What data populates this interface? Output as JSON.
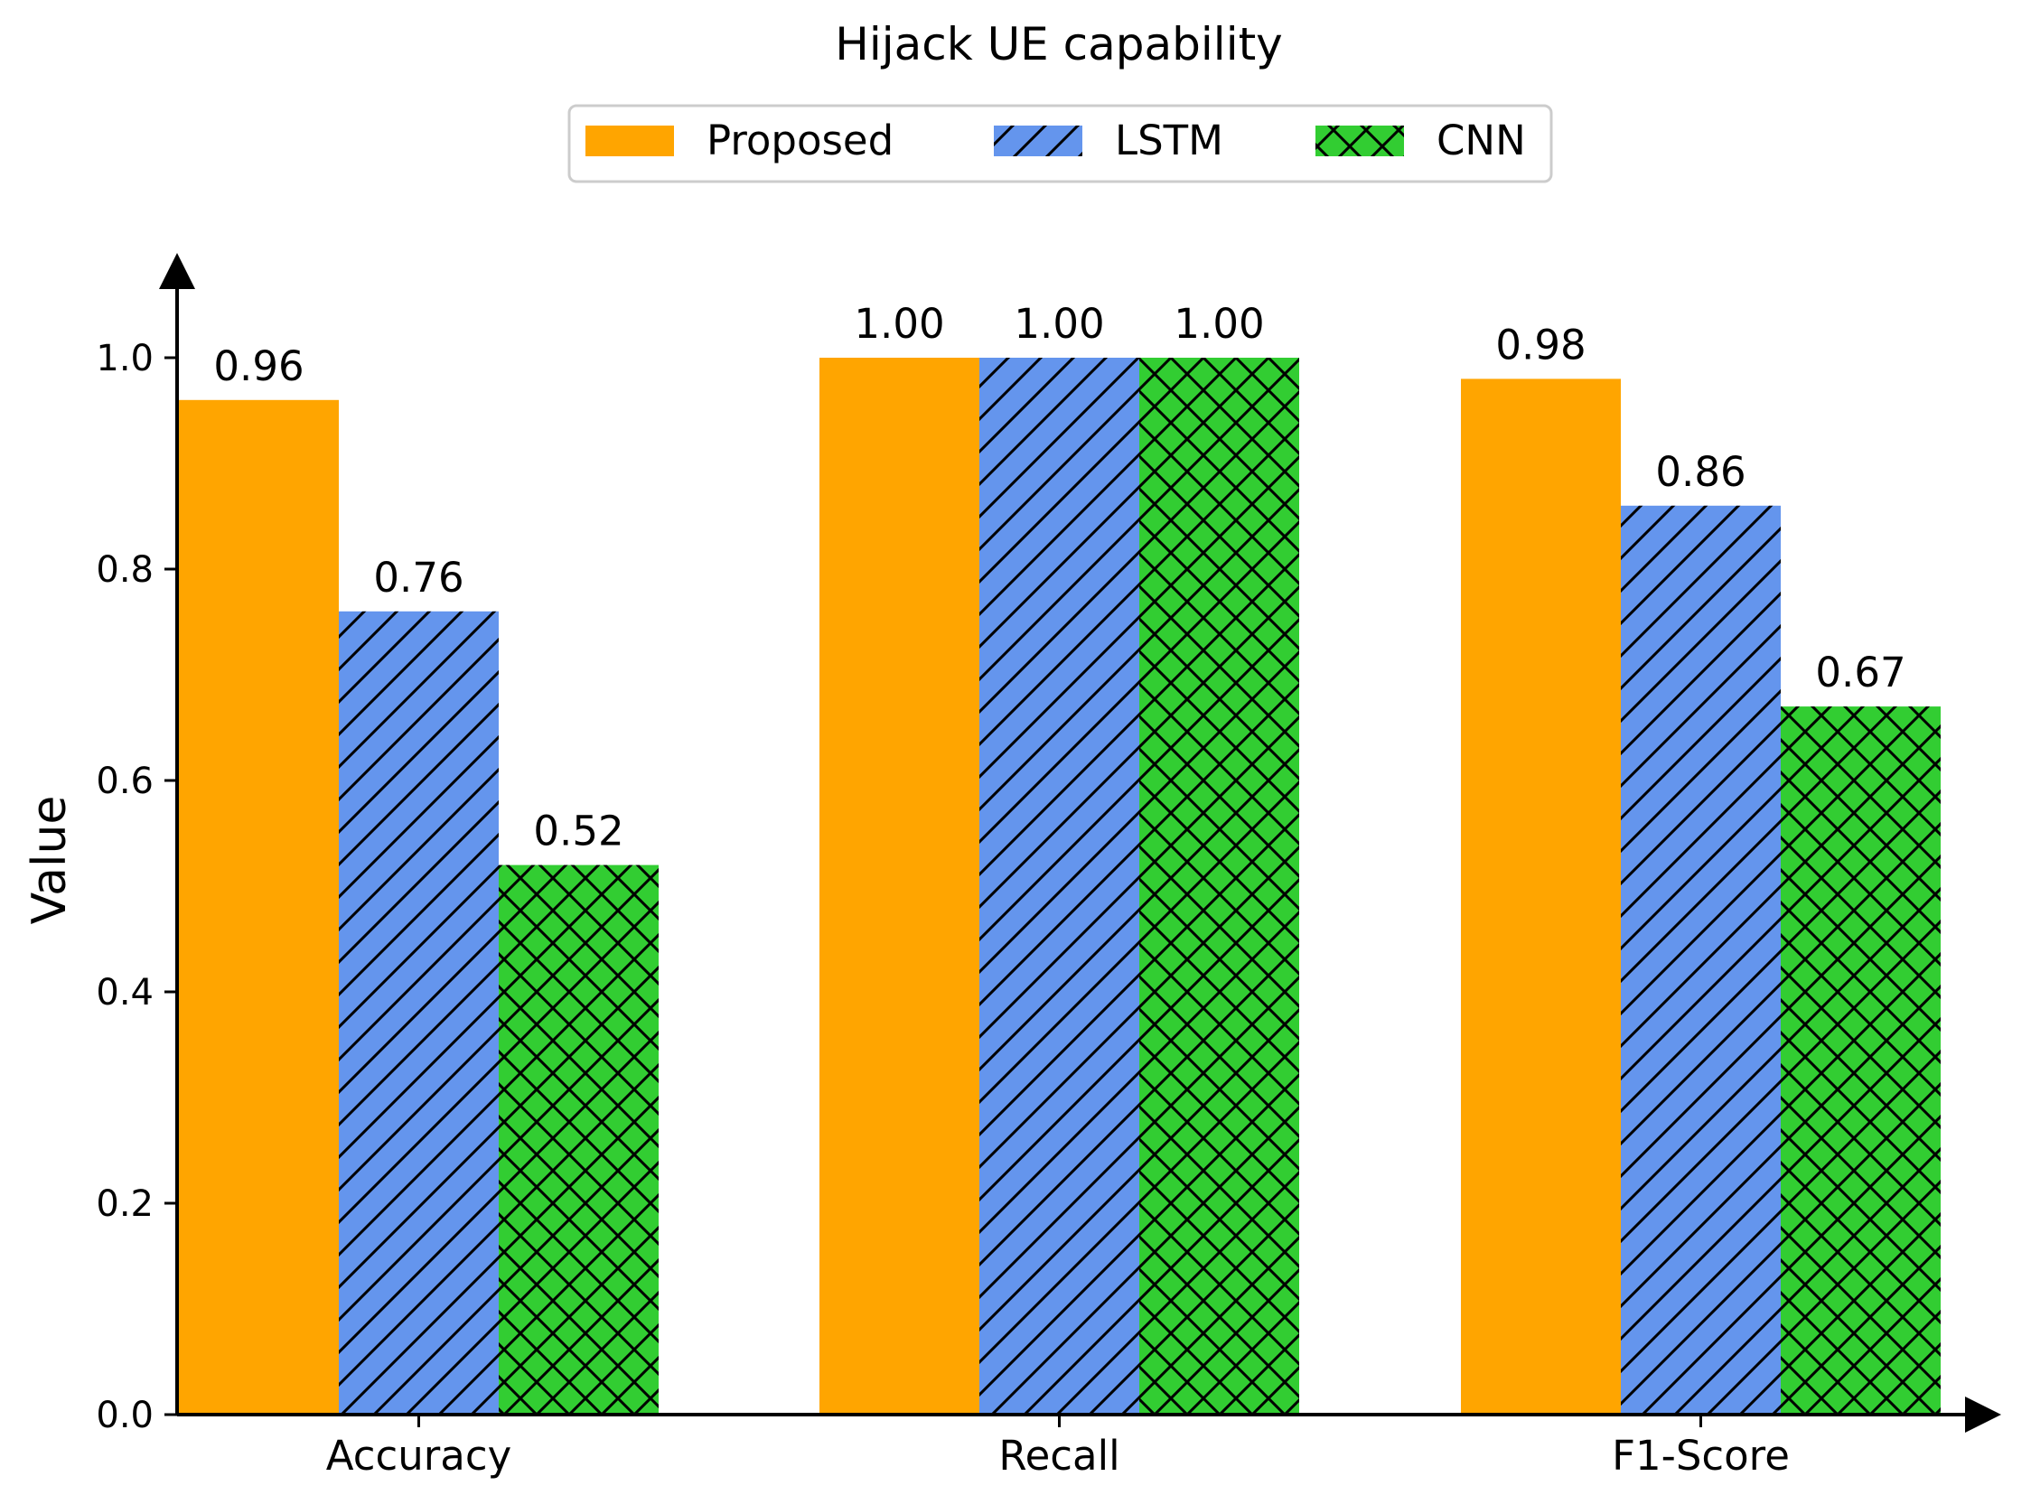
{
  "chart_data": {
    "type": "bar",
    "title": "Hijack UE capability",
    "xlabel": "",
    "ylabel": "Value",
    "categories": [
      "Accuracy",
      "Recall",
      "F1-Score"
    ],
    "series": [
      {
        "name": "Proposed",
        "values": [
          0.96,
          1.0,
          0.98
        ],
        "labels": [
          "0.96",
          "1.00",
          "0.98"
        ],
        "color": "#ffa500",
        "hatch": "none"
      },
      {
        "name": "LSTM",
        "values": [
          0.76,
          1.0,
          0.86
        ],
        "labels": [
          "0.76",
          "1.00",
          "0.86"
        ],
        "color": "#6495ed",
        "hatch": "diagonal"
      },
      {
        "name": "CNN",
        "values": [
          0.52,
          1.0,
          0.67
        ],
        "labels": [
          "0.52",
          "1.00",
          "0.67"
        ],
        "color": "#32cd32",
        "hatch": "cross"
      }
    ],
    "ylim": [
      0,
      1.08
    ],
    "yticks": [
      "0.0",
      "0.2",
      "0.4",
      "0.6",
      "0.8",
      "1.0"
    ],
    "grid": false,
    "legend_position": "top-center"
  }
}
